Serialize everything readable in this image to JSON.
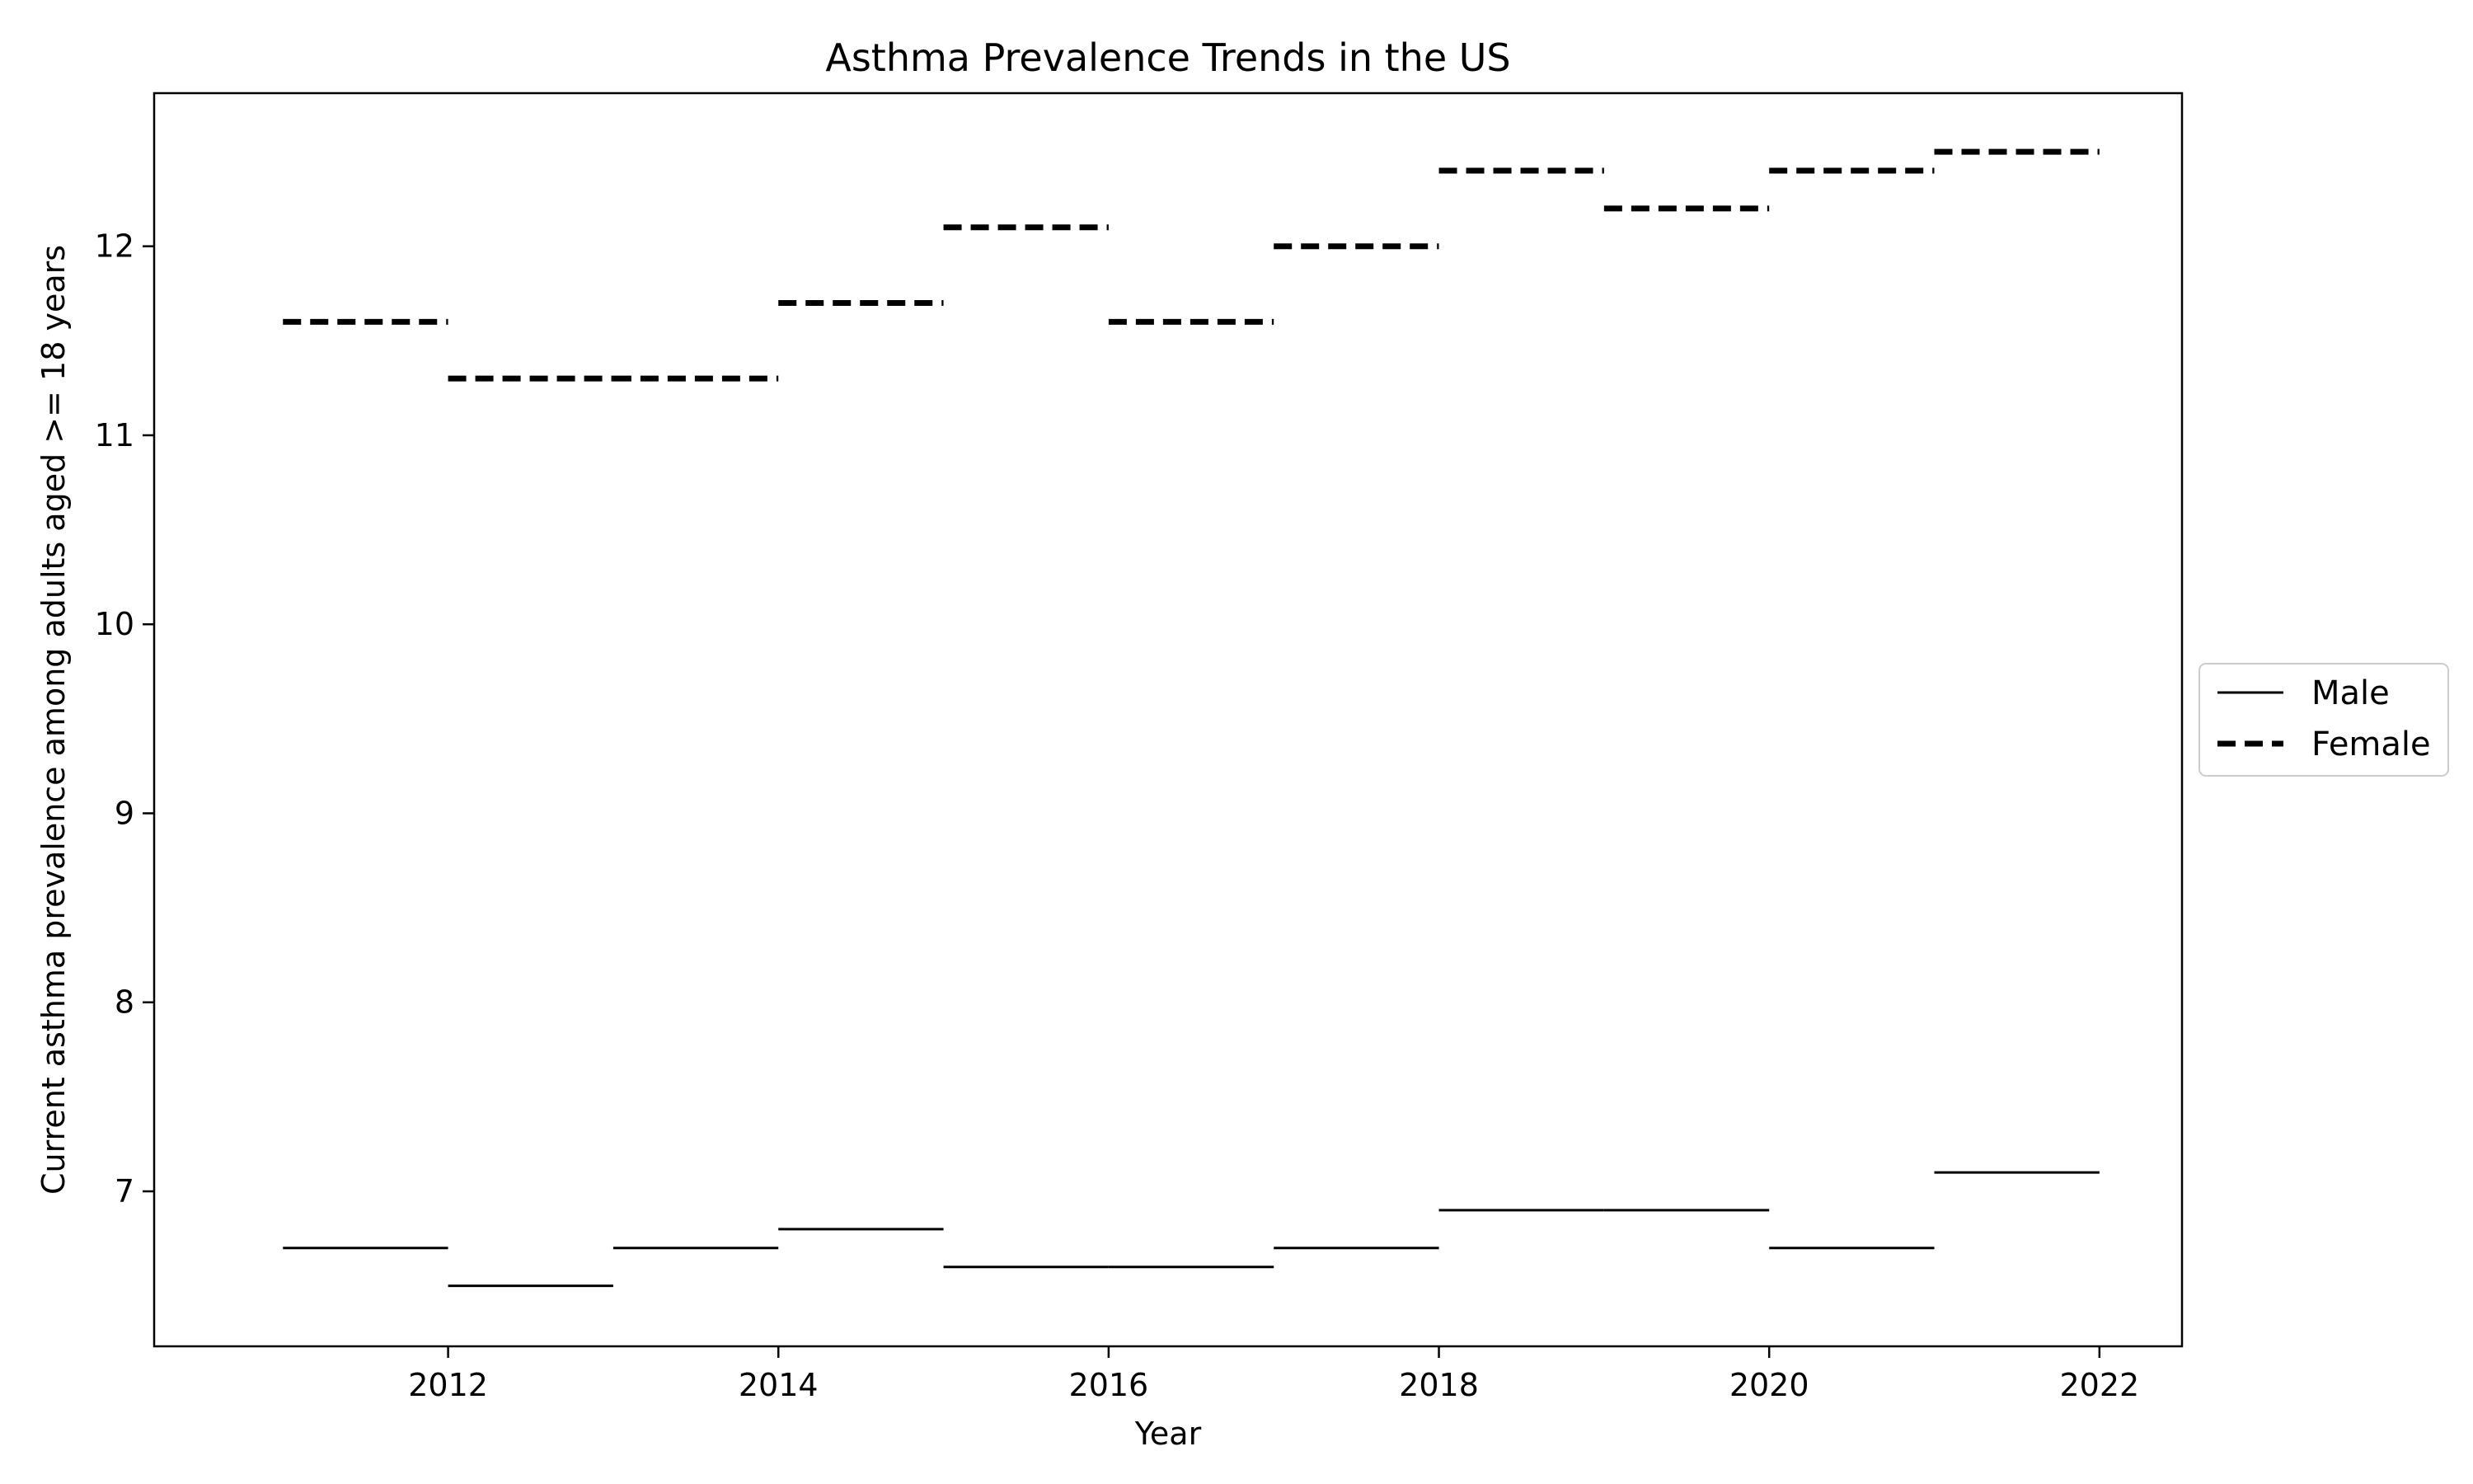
{
  "chart_data": {
    "type": "line",
    "title": "Asthma Prevalence Trends in the US",
    "xlabel": "Year",
    "ylabel": "Current asthma prevalence among adults aged >= 18 years",
    "xlim": [
      2010.22,
      2022.5
    ],
    "ylim": [
      6.18,
      12.81
    ],
    "xticks": [
      2012,
      2014,
      2016,
      2018,
      2020,
      2022
    ],
    "yticks": [
      7,
      8,
      9,
      10,
      11,
      12
    ],
    "legend_position": "center-right outside",
    "grid": false,
    "series": [
      {
        "name": "Male",
        "style": "solid",
        "color": "#000000",
        "segments": [
          {
            "x_start": 2011,
            "x_end": 2012,
            "y": 6.7
          },
          {
            "x_start": 2012,
            "x_end": 2013,
            "y": 6.5
          },
          {
            "x_start": 2013,
            "x_end": 2014,
            "y": 6.7
          },
          {
            "x_start": 2014,
            "x_end": 2015,
            "y": 6.8
          },
          {
            "x_start": 2015,
            "x_end": 2016,
            "y": 6.6
          },
          {
            "x_start": 2016,
            "x_end": 2017,
            "y": 6.6
          },
          {
            "x_start": 2017,
            "x_end": 2018,
            "y": 6.7
          },
          {
            "x_start": 2018,
            "x_end": 2019,
            "y": 6.9
          },
          {
            "x_start": 2019,
            "x_end": 2020,
            "y": 6.9
          },
          {
            "x_start": 2020,
            "x_end": 2021,
            "y": 6.7
          },
          {
            "x_start": 2021,
            "x_end": 2022,
            "y": 7.1
          }
        ]
      },
      {
        "name": "Female",
        "style": "dashed",
        "color": "#000000",
        "segments": [
          {
            "x_start": 2011,
            "x_end": 2012,
            "y": 11.6
          },
          {
            "x_start": 2012,
            "x_end": 2013,
            "y": 11.3
          },
          {
            "x_start": 2013,
            "x_end": 2014,
            "y": 11.3
          },
          {
            "x_start": 2014,
            "x_end": 2015,
            "y": 11.7
          },
          {
            "x_start": 2015,
            "x_end": 2016,
            "y": 12.1
          },
          {
            "x_start": 2016,
            "x_end": 2017,
            "y": 11.6
          },
          {
            "x_start": 2017,
            "x_end": 2018,
            "y": 12.0
          },
          {
            "x_start": 2018,
            "x_end": 2019,
            "y": 12.4
          },
          {
            "x_start": 2019,
            "x_end": 2020,
            "y": 12.2
          },
          {
            "x_start": 2020,
            "x_end": 2021,
            "y": 12.4
          },
          {
            "x_start": 2021,
            "x_end": 2022,
            "y": 12.5
          }
        ]
      }
    ]
  }
}
